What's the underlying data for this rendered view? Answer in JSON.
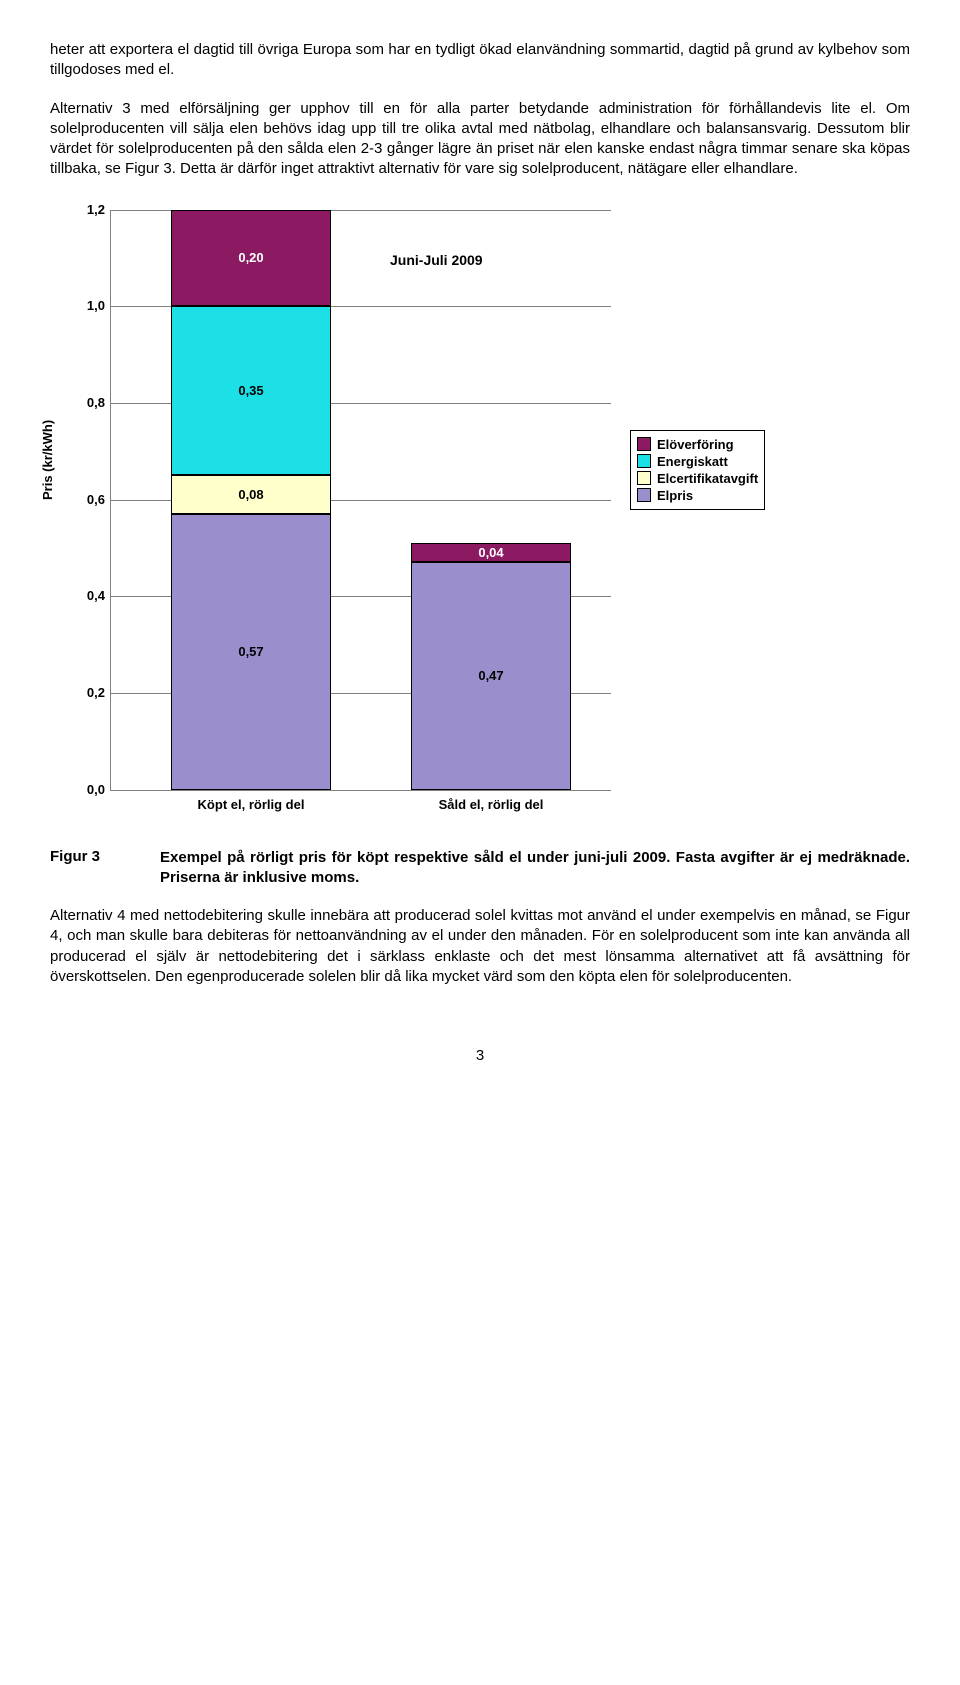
{
  "para1": "heter att exportera el dagtid till övriga Europa som har en tydligt ökad elanvändning sommartid, dagtid på grund av kylbehov som tillgodoses med el.",
  "para2": "Alternativ 3 med elförsäljning ger upphov till en för alla parter betydande administration för förhållandevis lite el. Om solelproducenten vill sälja elen behövs idag upp till tre olika avtal med nätbolag, elhandlare och balansansvarig. Dessutom blir värdet för solelproducenten på den sålda elen 2-3 gånger lägre än priset när elen kanske endast några timmar senare ska köpas tillbaka, se Figur 3. Detta är därför inget attraktivt alternativ för vare sig solelproducent, nätägare eller elhandlare.",
  "chart": {
    "y_label": "Pris (kr/kWh)",
    "title_annot": "Juni-Juli 2009",
    "ymax": 1.2,
    "ticks": [
      "0,0",
      "0,2",
      "0,4",
      "0,6",
      "0,8",
      "1,0",
      "1,2"
    ],
    "categories": [
      "Köpt el, rörlig del",
      "Såld el, rörlig del"
    ],
    "series": [
      {
        "name": "Elöverföring",
        "color": "#8b1a62"
      },
      {
        "name": "Energiskatt",
        "color": "#1ce0e5"
      },
      {
        "name": "Elcertifikatavgift",
        "color": "#ffffcc"
      },
      {
        "name": "Elpris",
        "color": "#9a8fcc"
      }
    ],
    "bars": [
      {
        "segments": [
          {
            "v": 0.57,
            "label": "0,57",
            "color": "#9a8fcc",
            "text": "light"
          },
          {
            "v": 0.08,
            "label": "0,08",
            "color": "#ffffcc",
            "text": "light"
          },
          {
            "v": 0.35,
            "label": "0,35",
            "color": "#1ce0e5",
            "text": "light"
          },
          {
            "v": 0.2,
            "label": "0,20",
            "color": "#8b1a62",
            "text": "dark"
          }
        ]
      },
      {
        "segments": [
          {
            "v": 0.47,
            "label": "0,47",
            "color": "#9a8fcc",
            "text": "light"
          },
          {
            "v": 0.04,
            "label": "0,04",
            "color": "#8b1a62",
            "text": "dark"
          }
        ]
      }
    ]
  },
  "fig_label": "Figur 3",
  "fig_caption": "Exempel på rörligt pris för köpt respektive såld el under juni-juli 2009. Fasta avgifter är ej medräknade. Priserna är inklusive moms.",
  "para3": "Alternativ 4 med nettodebitering skulle innebära att producerad solel kvittas mot använd el under exempelvis en månad, se Figur 4, och man skulle bara debiteras för nettoanvändning av el under den månaden. För en solelproducent som inte kan använda all producerad el själv är nettodebitering det i särklass enklaste och det mest lönsamma alternativet att få avsättning för överskottselen. Den egenproducerade solelen blir då lika mycket värd som den köpta elen för solelproducenten.",
  "page_num": "3"
}
